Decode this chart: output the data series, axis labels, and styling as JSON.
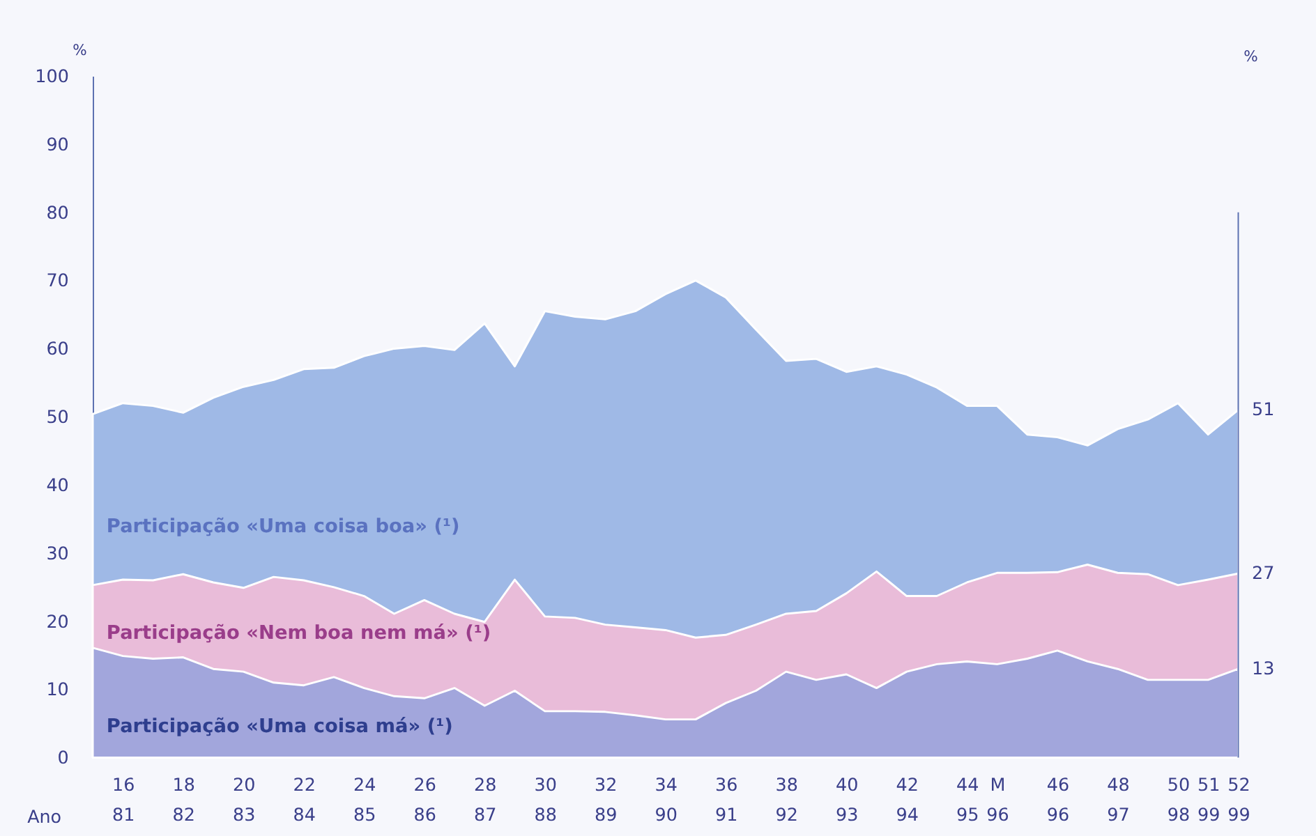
{
  "chart_data": {
    "type": "area",
    "ylabel": "%",
    "categories": [
      null,
      "16\n81",
      null,
      "18\n82",
      null,
      "20\n83",
      null,
      "22\n84",
      null,
      "24\n85",
      null,
      "26\n86",
      null,
      "28\n87",
      null,
      "30\n88",
      null,
      "32\n89",
      null,
      "34\n90",
      null,
      "36\n91",
      null,
      "38\n92",
      null,
      "40\n93",
      null,
      "42\n94",
      null,
      "44\n95",
      "M\n96",
      null,
      "46\n96",
      null,
      "48\n97",
      null,
      "50\n98",
      "51\n99",
      "52\n99"
    ],
    "series": [
      {
        "name": "Participação «Uma coisa boa» (¹)",
        "color": "#9fb9e6",
        "values": [
          50.4,
          52,
          51.6,
          50.6,
          52.8,
          54.4,
          55.4,
          57,
          57.2,
          58.9,
          60,
          60.4,
          59.8,
          63.7,
          57.4,
          65.5,
          64.7,
          64.3,
          65.5,
          68,
          70,
          67.5,
          62.8,
          58.2,
          58.5,
          56.6,
          57.4,
          56.2,
          54.3,
          51.6,
          51.6,
          47.4,
          47,
          45.8,
          48.2,
          49.6,
          52,
          47.4,
          51
        ],
        "value_labels": [
          null,
          null,
          null,
          null,
          null,
          null,
          null,
          null,
          null,
          null,
          null,
          null,
          null,
          null,
          null,
          null,
          null,
          null,
          null,
          null,
          null,
          null,
          null,
          null,
          null,
          null,
          null,
          null,
          null,
          null,
          null,
          null,
          null,
          null,
          null,
          null,
          null,
          null,
          "51"
        ]
      },
      {
        "name": "Participação «Nem boa nem má» (¹)",
        "color": "#e9bcd9",
        "values": [
          25.3,
          26.1,
          26,
          26.9,
          25.7,
          24.9,
          26.5,
          26,
          25,
          23.7,
          21.1,
          23.1,
          21.1,
          19.9,
          26.1,
          20.7,
          20.5,
          19.5,
          19.1,
          18.7,
          17.6,
          18,
          19.5,
          21.1,
          21.5,
          24.1,
          27.3,
          23.7,
          23.7,
          25.7,
          27.1,
          27.1,
          27.2,
          28.3,
          27.1,
          26.9,
          25.3,
          26.1,
          27
        ],
        "value_labels": [
          null,
          null,
          null,
          null,
          null,
          null,
          null,
          null,
          null,
          null,
          null,
          null,
          null,
          null,
          null,
          null,
          null,
          null,
          null,
          null,
          null,
          null,
          null,
          null,
          null,
          null,
          null,
          null,
          null,
          null,
          null,
          null,
          null,
          null,
          null,
          null,
          null,
          null,
          "27"
        ]
      },
      {
        "name": "Participação «Uma coisa má» (¹)",
        "color": "#a2a6dc",
        "values": [
          16.1,
          14.9,
          14.5,
          14.7,
          13,
          12.6,
          11,
          10.6,
          11.8,
          10.2,
          9,
          8.7,
          10.2,
          7.6,
          9.8,
          6.8,
          6.8,
          6.7,
          6.2,
          5.6,
          5.6,
          8,
          9.8,
          12.6,
          11.4,
          12.2,
          10.2,
          12.6,
          13.7,
          14.1,
          13.7,
          14.5,
          15.7,
          14.1,
          13,
          11.4,
          11.4,
          11.4,
          13
        ],
        "value_labels": [
          null,
          null,
          null,
          null,
          null,
          null,
          null,
          null,
          null,
          null,
          null,
          null,
          null,
          null,
          null,
          null,
          null,
          null,
          null,
          null,
          null,
          null,
          null,
          null,
          null,
          null,
          null,
          null,
          null,
          null,
          null,
          null,
          null,
          null,
          null,
          null,
          null,
          null,
          "13"
        ]
      }
    ],
    "ylim": [
      0,
      100
    ],
    "yticks": [
      0,
      10,
      20,
      30,
      40,
      50,
      60,
      70,
      80,
      90,
      100
    ],
    "annotations": [
      "Ano",
      "%"
    ]
  }
}
